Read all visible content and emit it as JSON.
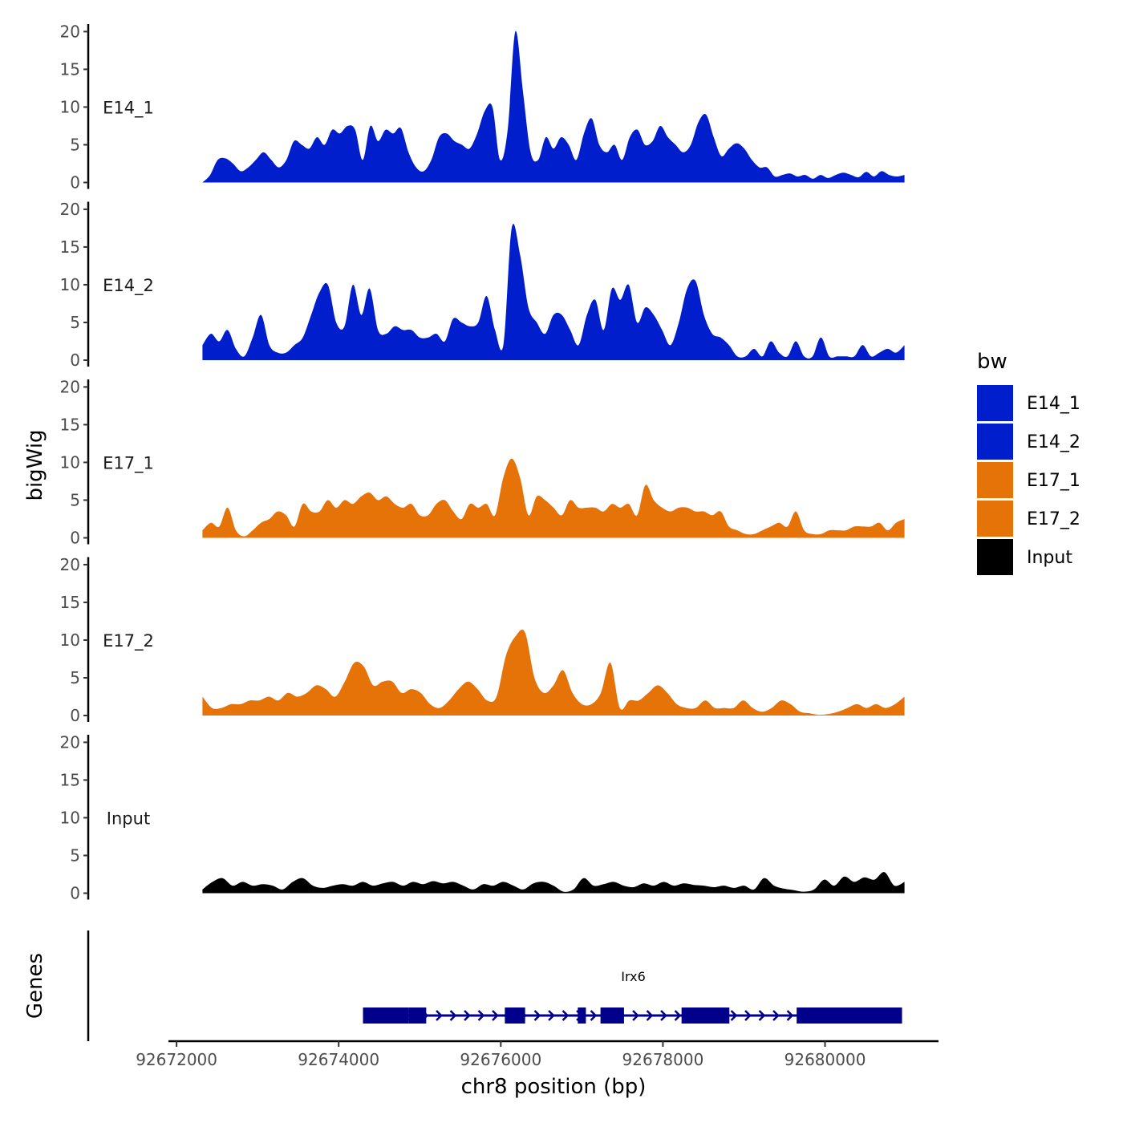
{
  "chart_data": {
    "type": "area",
    "chromosome": "chr8",
    "xlabel": "chr8 position (bp)",
    "ylabel": "bigWig",
    "genes_label": "Genes",
    "xlim": [
      92671900,
      92681400
    ],
    "data_range": [
      92672320,
      92680980
    ],
    "ylim": [
      0,
      21
    ],
    "yticks": [
      0,
      5,
      10,
      15,
      20
    ],
    "xticks": [
      92672000,
      92674000,
      92676000,
      92678000,
      92680000
    ],
    "legend": {
      "title": "bw",
      "position": "right",
      "entries": [
        "E14_1",
        "E14_2",
        "E17_1",
        "E17_2",
        "Input"
      ]
    },
    "series": [
      {
        "name": "E14_1",
        "color": "#001ecc",
        "values": [
          0,
          1,
          3,
          3.2,
          2.5,
          1.5,
          2,
          3,
          4,
          3,
          2,
          3,
          5.5,
          5,
          4.5,
          6,
          5,
          7,
          6.5,
          7.5,
          7,
          3,
          7.5,
          5.5,
          7,
          6.5,
          7.2,
          4,
          2,
          1.5,
          3,
          6,
          6.5,
          5.5,
          5,
          4.5,
          6.5,
          9.5,
          10,
          3,
          7,
          20,
          12,
          4,
          3,
          6,
          4.5,
          6,
          5,
          3,
          6.5,
          8.5,
          5,
          4,
          5,
          3,
          6,
          7,
          5,
          5.5,
          7.5,
          6,
          5,
          4,
          5,
          8,
          9,
          6,
          3.5,
          4.5,
          5.2,
          4.5,
          3,
          2,
          2,
          0.8,
          1,
          1.2,
          0.8,
          1,
          0.5,
          1,
          0.6,
          1,
          1.3,
          1,
          0.7,
          1.4,
          0.8,
          1.5,
          1,
          0.8,
          1
        ]
      },
      {
        "name": "E14_2",
        "color": "#001ecc",
        "values": [
          2,
          3.5,
          2.5,
          4,
          1.5,
          0.5,
          3,
          6,
          2,
          1,
          1,
          2,
          3,
          6,
          9,
          10,
          5,
          4.5,
          10,
          6,
          9.5,
          4,
          3.5,
          4.5,
          4,
          4,
          3,
          3,
          3.5,
          2.5,
          5.5,
          5,
          4.5,
          5,
          8.5,
          4,
          2,
          17.5,
          14,
          7,
          5,
          3.5,
          6,
          6,
          4,
          2,
          6,
          8,
          4,
          9.5,
          8,
          10,
          5,
          7,
          6,
          4,
          2,
          5,
          9.5,
          10.5,
          6,
          3.5,
          3,
          2,
          0.5,
          0.5,
          1.5,
          0.5,
          2.5,
          1,
          0.5,
          2.5,
          0.5,
          0.5,
          3,
          0.5,
          0.5,
          0.5,
          0.5,
          2,
          0.5,
          1,
          1.5,
          1,
          2
        ]
      },
      {
        "name": "E17_1",
        "color": "#e57307",
        "values": [
          1,
          2,
          1.5,
          4,
          1,
          0.2,
          1,
          2,
          2.5,
          3.5,
          3,
          1.5,
          4.5,
          3.5,
          3.5,
          5,
          4,
          5,
          4.5,
          5.5,
          6,
          5,
          5.5,
          4.5,
          4,
          4.5,
          3,
          3,
          4.5,
          5,
          3.5,
          2.5,
          4.5,
          4,
          4.5,
          3,
          8,
          10.5,
          8,
          3,
          5.5,
          5,
          4,
          3,
          5,
          4,
          4,
          4,
          3.5,
          4.5,
          4,
          4.5,
          3,
          7,
          5,
          4,
          3.5,
          4,
          4,
          3.5,
          3.5,
          3,
          3.5,
          1.5,
          1,
          0.5,
          0.5,
          1,
          1.5,
          2,
          1.5,
          3.5,
          1,
          0.5,
          0.5,
          1,
          1,
          1,
          1.5,
          1.5,
          1.5,
          2,
          1,
          2,
          2.5
        ]
      },
      {
        "name": "E17_2",
        "color": "#e57307",
        "values": [
          2.5,
          1,
          1,
          1.5,
          1.5,
          2,
          2,
          2.5,
          2,
          3,
          2.5,
          3,
          4,
          3.5,
          2.5,
          4.5,
          7,
          6.5,
          4,
          4.5,
          4.5,
          3,
          3.5,
          3,
          1.5,
          1,
          2,
          3.5,
          4.5,
          3.5,
          2,
          2.5,
          8,
          10.5,
          11,
          5,
          3,
          4,
          6,
          3,
          1.5,
          1.5,
          3,
          7,
          1,
          2,
          2,
          3,
          4,
          3,
          1.5,
          1,
          1,
          2,
          1,
          1,
          1,
          2,
          1,
          0.5,
          1,
          2,
          1.5,
          0.5,
          0.3,
          0.1,
          0.2,
          0.5,
          1,
          1.5,
          1,
          1.5,
          1,
          1.5,
          2.5
        ]
      },
      {
        "name": "Input",
        "color": "#000000",
        "values": [
          0.5,
          1.5,
          2,
          1,
          1.5,
          1,
          1.2,
          1,
          0.5,
          1.5,
          2,
          1,
          0.7,
          1,
          1.2,
          1,
          1.5,
          1,
          1.3,
          1.5,
          1,
          1.5,
          1.2,
          1.6,
          1.3,
          1.5,
          1,
          0.5,
          1.2,
          1,
          1.5,
          1,
          0.5,
          1.3,
          1.5,
          1,
          0.2,
          0.5,
          2,
          1,
          1.2,
          1.5,
          1,
          0.8,
          1.3,
          1,
          1.5,
          1,
          1.3,
          1.1,
          1,
          0.8,
          1,
          0.7,
          1,
          0.5,
          2,
          1,
          0.6,
          0.4,
          0.2,
          0.5,
          1.8,
          1,
          2.2,
          1.5,
          2.1,
          1.8,
          2.8,
          1,
          1.5
        ]
      }
    ],
    "gene": {
      "name": "Irx6",
      "color": "#00008b",
      "start": 92674300,
      "end": 92680950,
      "strand": "+",
      "exons": [
        [
          92674300,
          92674860
        ],
        [
          92674860,
          92675080
        ],
        [
          92676050,
          92676300
        ],
        [
          92676950,
          92677050
        ],
        [
          92677230,
          92677520
        ],
        [
          92678230,
          92678820
        ],
        [
          92679650,
          92680950
        ]
      ]
    }
  }
}
